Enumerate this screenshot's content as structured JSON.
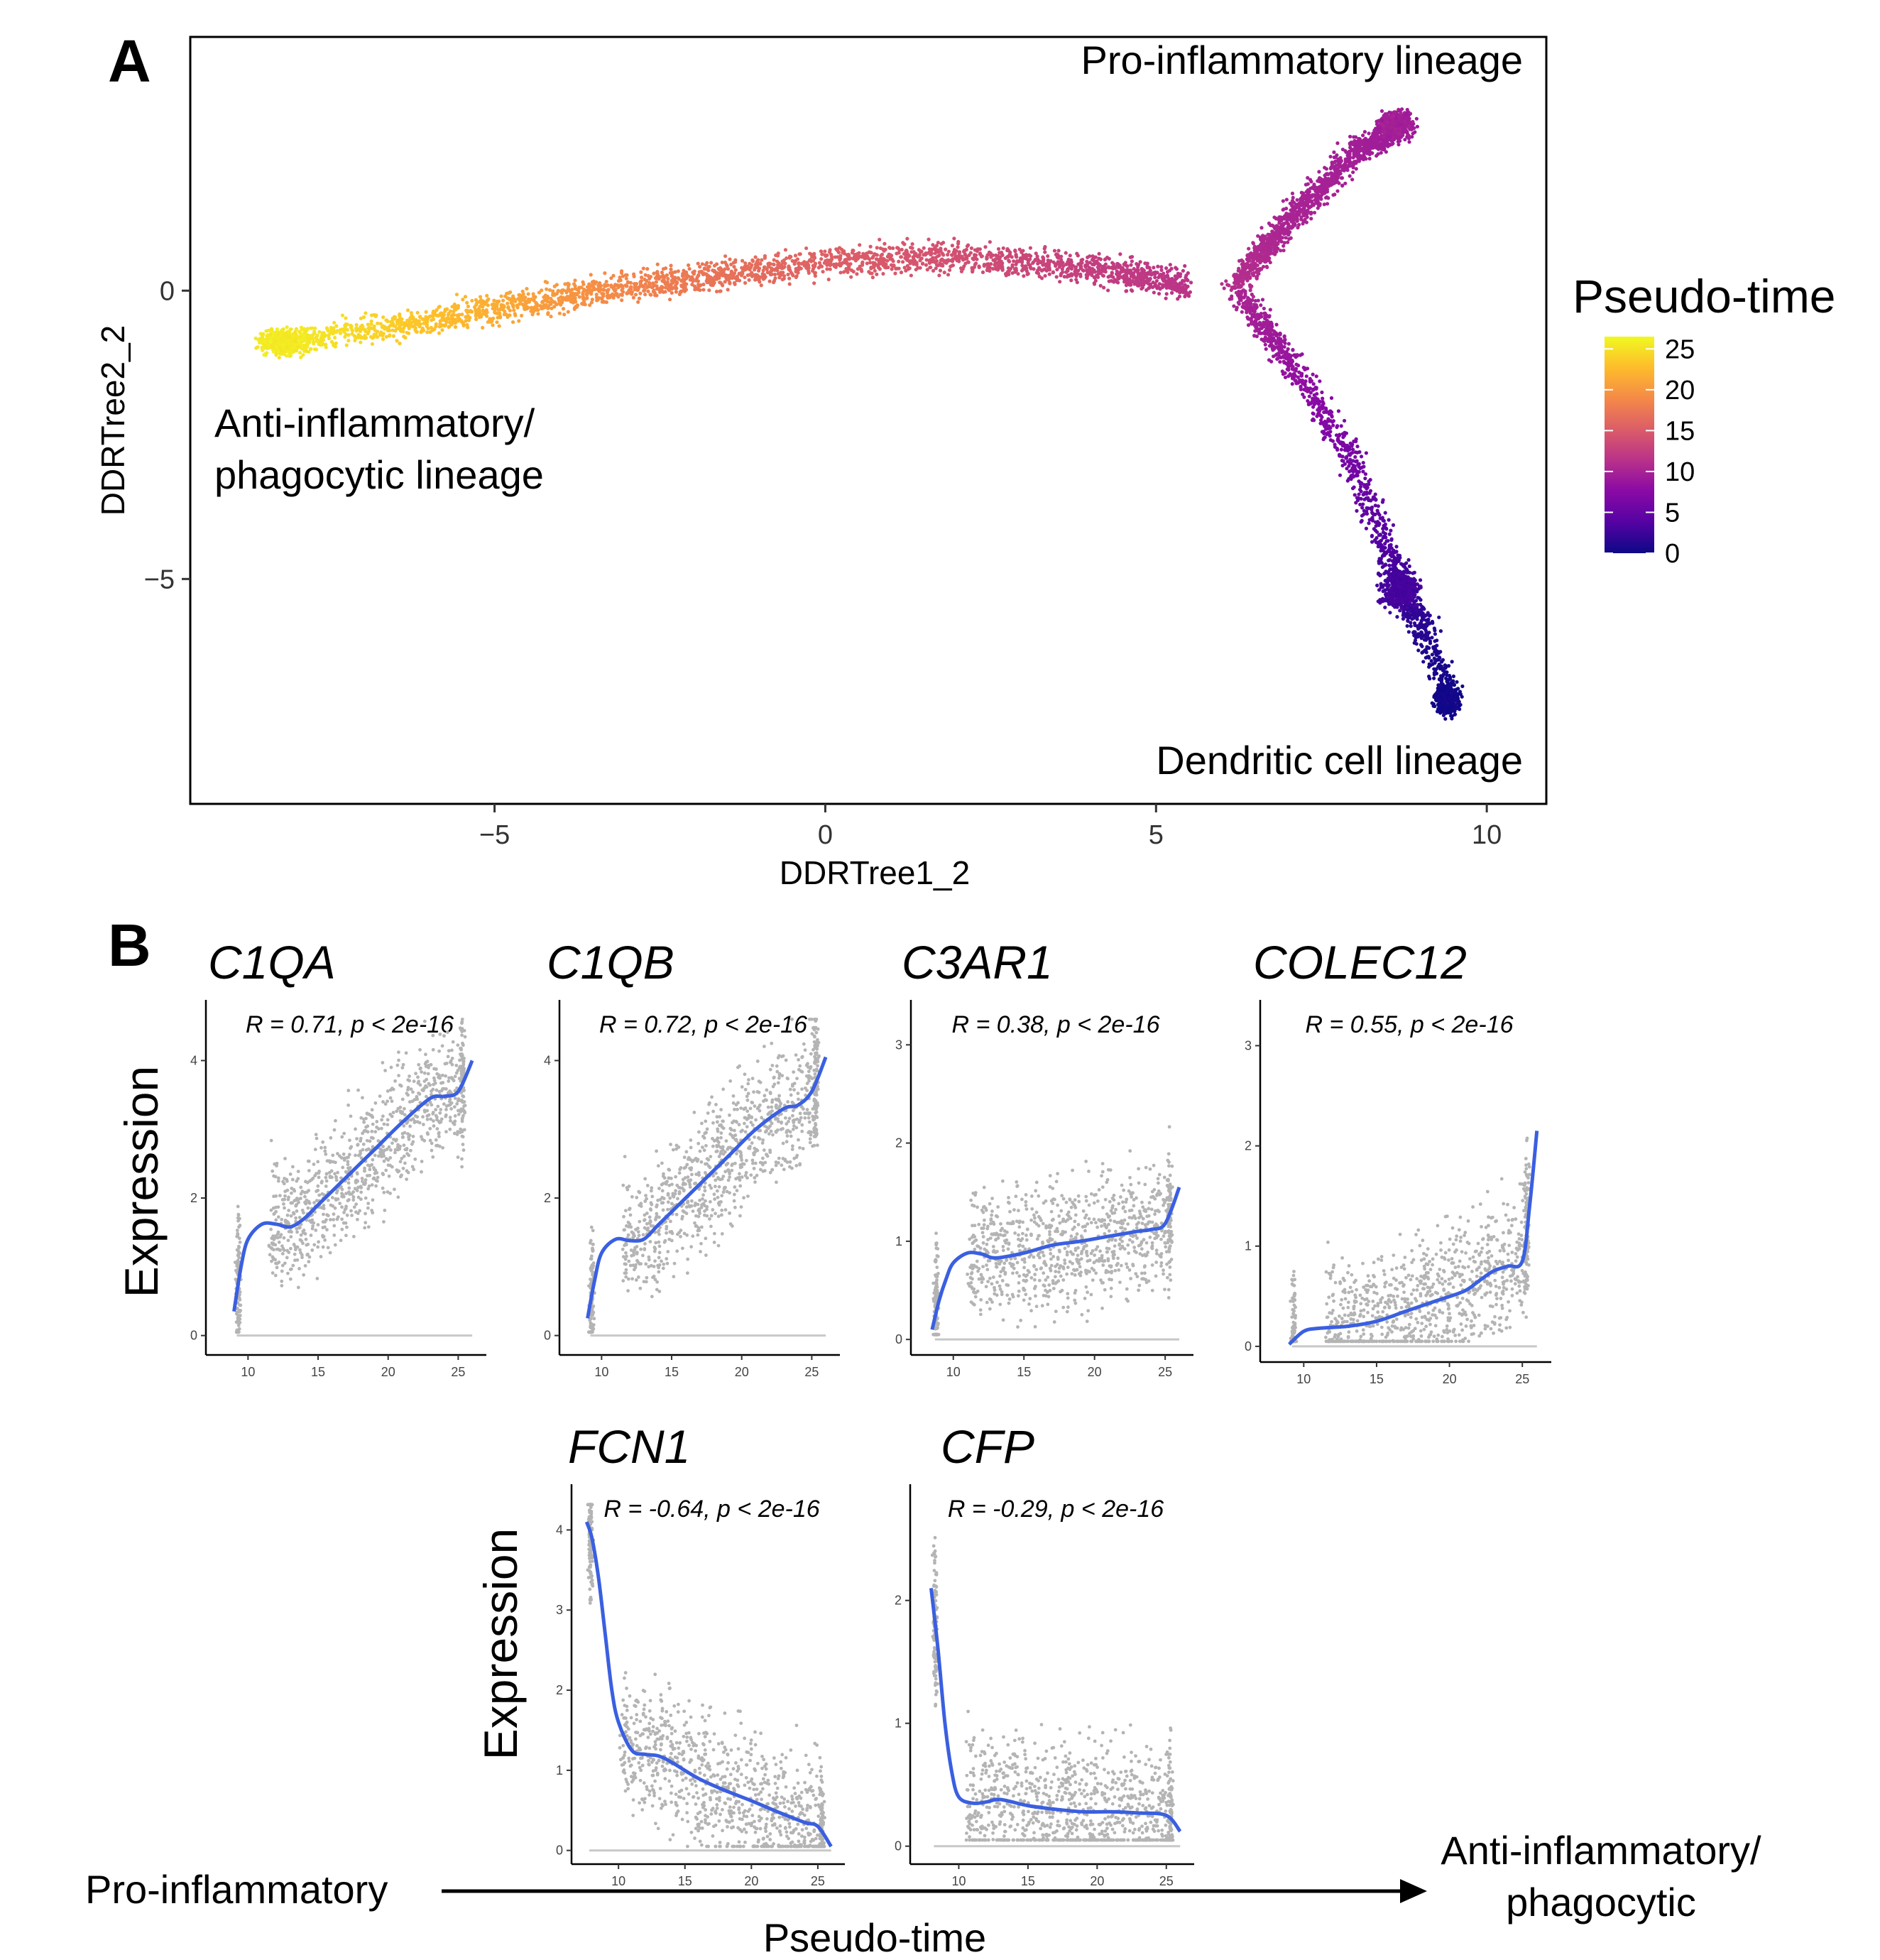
{
  "panel_a": {
    "panel_label": "A",
    "xlabel": "DDRTree1_2",
    "ylabel": "DDRTree2_2",
    "legend_title": "Pseudo-time",
    "annotations": [
      "Pro-inflammatory lineage",
      "Anti-inflammatory/",
      "phagocytic lineage",
      "Dendritic cell lineage"
    ]
  },
  "panel_b": {
    "panel_label": "B",
    "ylabel": "Expression"
  },
  "bottom_axis": {
    "left": "Pro-inflammatory",
    "right_line1": "Anti-inflammatory/",
    "right_line2": "phagocytic",
    "label": "Pseudo-time"
  },
  "colors": {
    "trend_line": "#3a5fe0",
    "points": "#b4b4b4",
    "colormap": [
      "#0d0887",
      "#5402a3",
      "#8b0aa5",
      "#b93289",
      "#db5c68",
      "#f48849",
      "#febd2a",
      "#f0f921"
    ]
  },
  "chart_data": [
    {
      "type": "scatter",
      "title": "",
      "xlabel": "DDRTree1_2",
      "ylabel": "DDRTree2_2",
      "xlim": [
        -9.6,
        10.9
      ],
      "ylim": [
        -8.9,
        4.4
      ],
      "xticks": [
        -5,
        0,
        5,
        10
      ],
      "yticks": [
        -5,
        0
      ],
      "grid": false,
      "color_by": "Pseudo-time",
      "colorbar": {
        "ticks": [
          25,
          20,
          15,
          10,
          5,
          0
        ],
        "range": [
          0,
          26.5
        ],
        "position": "right"
      },
      "branches": [
        {
          "name": "Anti-inflammatory/phagocytic lineage",
          "x": [
            -8.3,
            -6,
            -4,
            -2,
            0,
            2,
            4,
            5.5
          ],
          "y": [
            -0.9,
            -0.5,
            -0.1,
            0.2,
            0.5,
            0.6,
            0.4,
            0.1
          ],
          "pseudotime": [
            26,
            23,
            20,
            17.5,
            15.5,
            14,
            12.5,
            11.5
          ]
        },
        {
          "name": "Pro-inflammatory lineage",
          "x": [
            6.2,
            7,
            8,
            8.8
          ],
          "y": [
            0.1,
            1.2,
            2.4,
            2.9
          ],
          "pseudotime": [
            11,
            10,
            9.5,
            9
          ]
        },
        {
          "name": "Dendritic cell lineage",
          "x": [
            6.3,
            7,
            8,
            8.6,
            9,
            9.5
          ],
          "y": [
            -0.1,
            -1.2,
            -3,
            -4.8,
            -5.8,
            -7.1
          ],
          "pseudotime": [
            10,
            8.5,
            6,
            3,
            1.5,
            0
          ]
        }
      ]
    },
    {
      "type": "scatter",
      "title": "C1QA",
      "annotation": "R = 0.71, p < 2e-16",
      "xlabel": "",
      "ylabel": "Expression",
      "xlim": [
        7.5,
        26.5
      ],
      "ylim": [
        -0.2,
        4.8
      ],
      "xticks": [
        10,
        15,
        20,
        25
      ],
      "yticks": [
        0,
        2,
        4
      ],
      "trend": {
        "x": [
          9,
          9.5,
          10,
          11,
          12,
          13,
          14,
          15,
          17,
          19,
          21,
          23,
          24,
          25,
          26
        ],
        "y": [
          0.35,
          1.0,
          1.4,
          1.62,
          1.62,
          1.58,
          1.7,
          1.9,
          2.3,
          2.7,
          3.1,
          3.45,
          3.48,
          3.55,
          4.0
        ]
      }
    },
    {
      "type": "scatter",
      "title": "C1QB",
      "annotation": "R = 0.72, p < 2e-16",
      "xlabel": "",
      "ylabel": "",
      "xlim": [
        7.5,
        26.5
      ],
      "ylim": [
        -0.2,
        4.8
      ],
      "xticks": [
        10,
        15,
        20,
        25
      ],
      "yticks": [
        0,
        2,
        4
      ],
      "trend": {
        "x": [
          9,
          9.5,
          10,
          11,
          12,
          13,
          14,
          15,
          17,
          19,
          21,
          23,
          24,
          25,
          26
        ],
        "y": [
          0.25,
          0.8,
          1.2,
          1.4,
          1.38,
          1.4,
          1.6,
          1.8,
          2.2,
          2.6,
          3.0,
          3.3,
          3.35,
          3.55,
          4.05
        ]
      }
    },
    {
      "type": "scatter",
      "title": "C3AR1",
      "annotation": "R = 0.38, p < 2e-16",
      "xlabel": "",
      "ylabel": "",
      "xlim": [
        7.5,
        26.5
      ],
      "ylim": [
        -0.1,
        3.4
      ],
      "xticks": [
        10,
        15,
        20,
        25
      ],
      "yticks": [
        0,
        1,
        2,
        3
      ],
      "trend": {
        "x": [
          8.5,
          9,
          9.5,
          10,
          11,
          12,
          13,
          15,
          17,
          19,
          21,
          23,
          24,
          25,
          26
        ],
        "y": [
          0.1,
          0.4,
          0.62,
          0.78,
          0.88,
          0.87,
          0.83,
          0.88,
          0.96,
          1.0,
          1.05,
          1.1,
          1.12,
          1.18,
          1.55
        ]
      }
    },
    {
      "type": "scatter",
      "title": "COLEC12",
      "annotation": "R = 0.55, p < 2e-16",
      "xlabel": "",
      "ylabel": "",
      "xlim": [
        7.5,
        26.5
      ],
      "ylim": [
        -0.1,
        3.4
      ],
      "xticks": [
        10,
        15,
        20,
        25
      ],
      "yticks": [
        0,
        1,
        2,
        3
      ],
      "trend": {
        "x": [
          9,
          10,
          11,
          13,
          15,
          17,
          19,
          21,
          22,
          23,
          24,
          25,
          25.5,
          26
        ],
        "y": [
          0.02,
          0.15,
          0.18,
          0.2,
          0.25,
          0.35,
          0.45,
          0.55,
          0.65,
          0.75,
          0.8,
          0.85,
          1.4,
          2.15
        ]
      }
    },
    {
      "type": "scatter",
      "title": "FCN1",
      "annotation": "R = -0.64, p < 2e-16",
      "xlabel": "",
      "ylabel": "Expression",
      "xlim": [
        7,
        26.5
      ],
      "ylim": [
        -0.1,
        4.5
      ],
      "xticks": [
        10,
        15,
        20,
        25
      ],
      "yticks": [
        0,
        1,
        2,
        3,
        4
      ],
      "trend": {
        "x": [
          7.6,
          8,
          8.5,
          9,
          9.5,
          10,
          11,
          12,
          13,
          14,
          16,
          18,
          20,
          22,
          24,
          25,
          26
        ],
        "y": [
          4.1,
          3.9,
          3.4,
          2.7,
          2.0,
          1.6,
          1.25,
          1.2,
          1.18,
          1.1,
          0.9,
          0.75,
          0.62,
          0.48,
          0.35,
          0.3,
          0.05
        ]
      }
    },
    {
      "type": "scatter",
      "title": "CFP",
      "annotation": "R = -0.29, p < 2e-16",
      "xlabel": "",
      "ylabel": "",
      "xlim": [
        7,
        26.5
      ],
      "ylim": [
        -0.1,
        2.9
      ],
      "xticks": [
        10,
        15,
        20,
        25
      ],
      "yticks": [
        0,
        1,
        2
      ],
      "trend": {
        "x": [
          8,
          8.5,
          9,
          9.5,
          10,
          11,
          12,
          13,
          15,
          17,
          19,
          21,
          23,
          25,
          26
        ],
        "y": [
          2.1,
          1.6,
          1.0,
          0.6,
          0.4,
          0.35,
          0.36,
          0.38,
          0.33,
          0.3,
          0.28,
          0.28,
          0.27,
          0.25,
          0.12
        ]
      }
    }
  ]
}
